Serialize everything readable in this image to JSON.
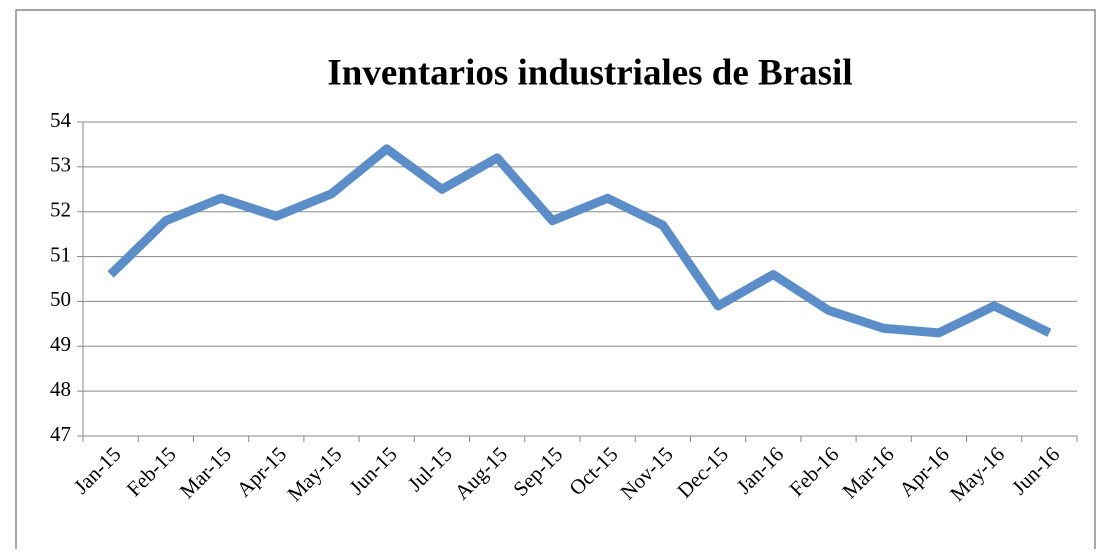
{
  "chart_data": {
    "type": "line",
    "title": "Inventarios industriales de Brasil",
    "categories": [
      "Jan-15",
      "Feb-15",
      "Mar-15",
      "Apr-15",
      "May-15",
      "Jun-15",
      "Jul-15",
      "Aug-15",
      "Sep-15",
      "Oct-15",
      "Nov-15",
      "Dec-15",
      "Jan-16",
      "Feb-16",
      "Mar-16",
      "Apr-16",
      "May-16",
      "Jun-16"
    ],
    "series": [
      {
        "name": "Inventarios industriales de Brasil",
        "color": "#5b8ec8",
        "values": [
          50.6,
          51.8,
          52.3,
          51.9,
          52.4,
          53.4,
          52.5,
          53.2,
          51.8,
          52.3,
          51.7,
          49.9,
          50.6,
          49.8,
          49.4,
          49.3,
          49.9,
          49.3
        ]
      }
    ],
    "ylim": [
      47,
      54
    ],
    "yticks": [
      47,
      48,
      49,
      50,
      51,
      52,
      53,
      54
    ],
    "grid": true
  }
}
